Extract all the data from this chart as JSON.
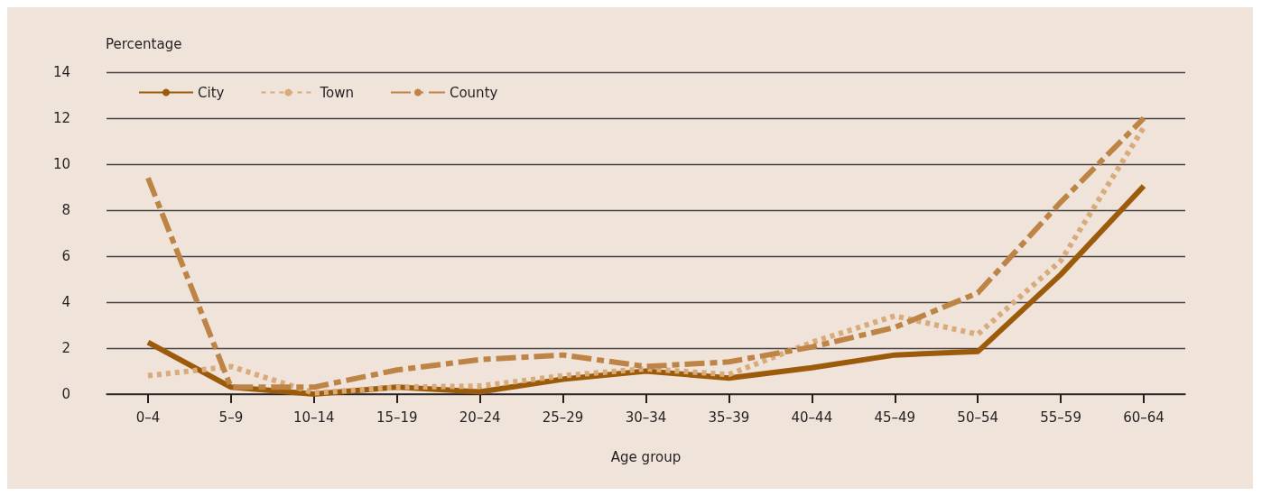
{
  "chart_data": {
    "type": "line",
    "xlabel": "Age group",
    "ylabel": "Percentage",
    "categories": [
      "0–4",
      "5–9",
      "10–14",
      "15–19",
      "20–24",
      "25–29",
      "30–34",
      "35–39",
      "40–44",
      "45–49",
      "50–54",
      "55–59",
      "60–64"
    ],
    "ylim": [
      0,
      14
    ],
    "yticks": [
      0,
      2,
      4,
      6,
      8,
      10,
      12,
      14
    ],
    "grid": "y",
    "legend": "top left",
    "marker": "none",
    "series": [
      {
        "name": "City",
        "color": "#9c5b0a",
        "line_style": "solid",
        "values": [
          2.25,
          0.3,
          0,
          0.3,
          0.1,
          0.65,
          1.0,
          0.7,
          1.15,
          1.7,
          1.85,
          5.2,
          9.05
        ]
      },
      {
        "name": "Town",
        "color": "#d9ab7a",
        "line_style": "dotted",
        "values": [
          0.8,
          1.2,
          0.05,
          0.3,
          0.35,
          0.8,
          1.1,
          0.85,
          2.25,
          3.4,
          2.6,
          5.8,
          11.6
        ]
      },
      {
        "name": "County",
        "color": "#bd8446",
        "line_style": "dashed",
        "values": [
          9.4,
          0.3,
          0.3,
          1.05,
          1.5,
          1.7,
          1.2,
          1.4,
          2.05,
          2.9,
          4.4,
          8.35,
          12.0
        ]
      }
    ]
  }
}
